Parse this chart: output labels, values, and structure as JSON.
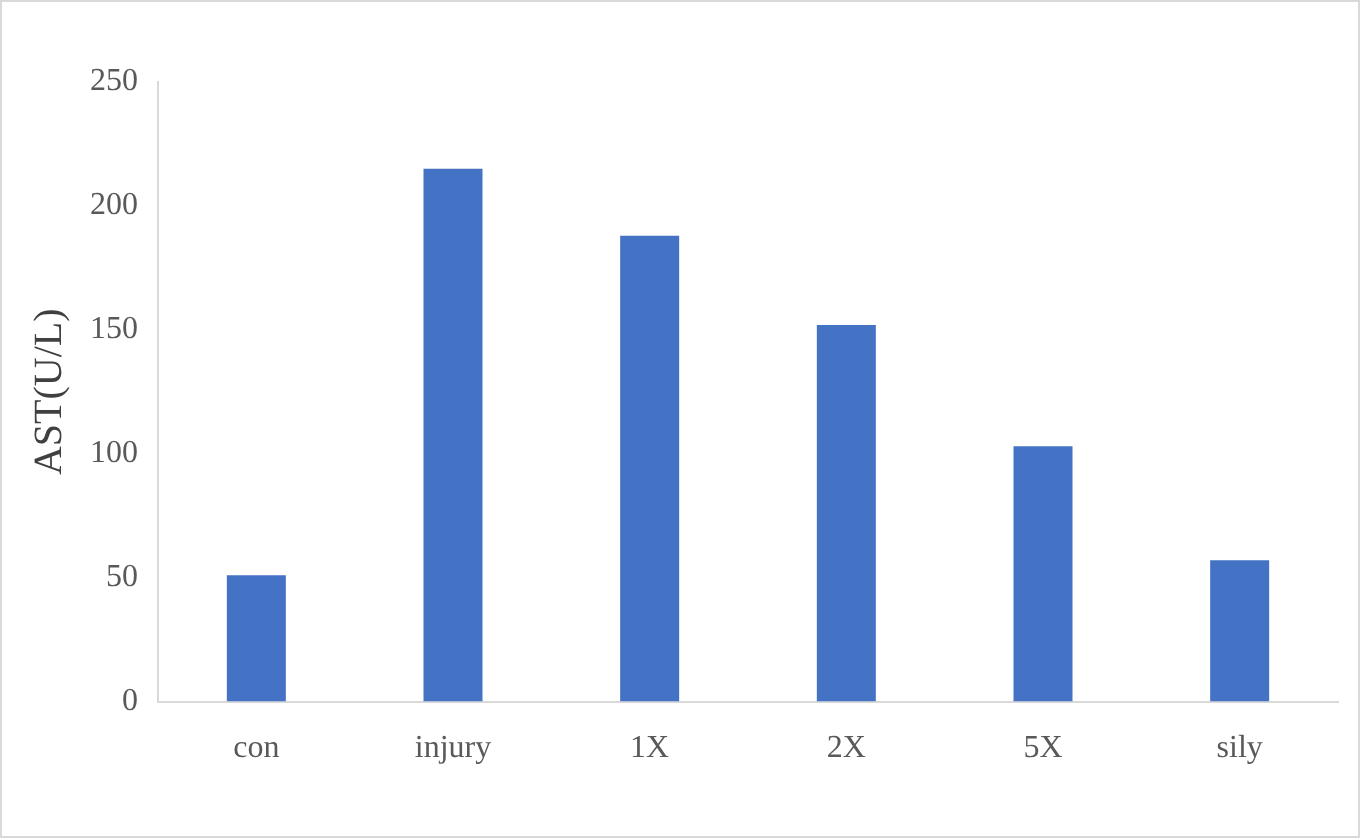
{
  "chart_data": {
    "type": "bar",
    "categories": [
      "con",
      "injury",
      "1X",
      "2X",
      "5X",
      "sily"
    ],
    "values": [
      51,
      215,
      188,
      152,
      103,
      57
    ],
    "color": "#4472c4",
    "ylabel": "AST(U/L)",
    "ylim": [
      0,
      250
    ],
    "yticks": [
      0,
      50,
      100,
      150,
      200,
      250
    ],
    "grid": false,
    "legend": false
  }
}
